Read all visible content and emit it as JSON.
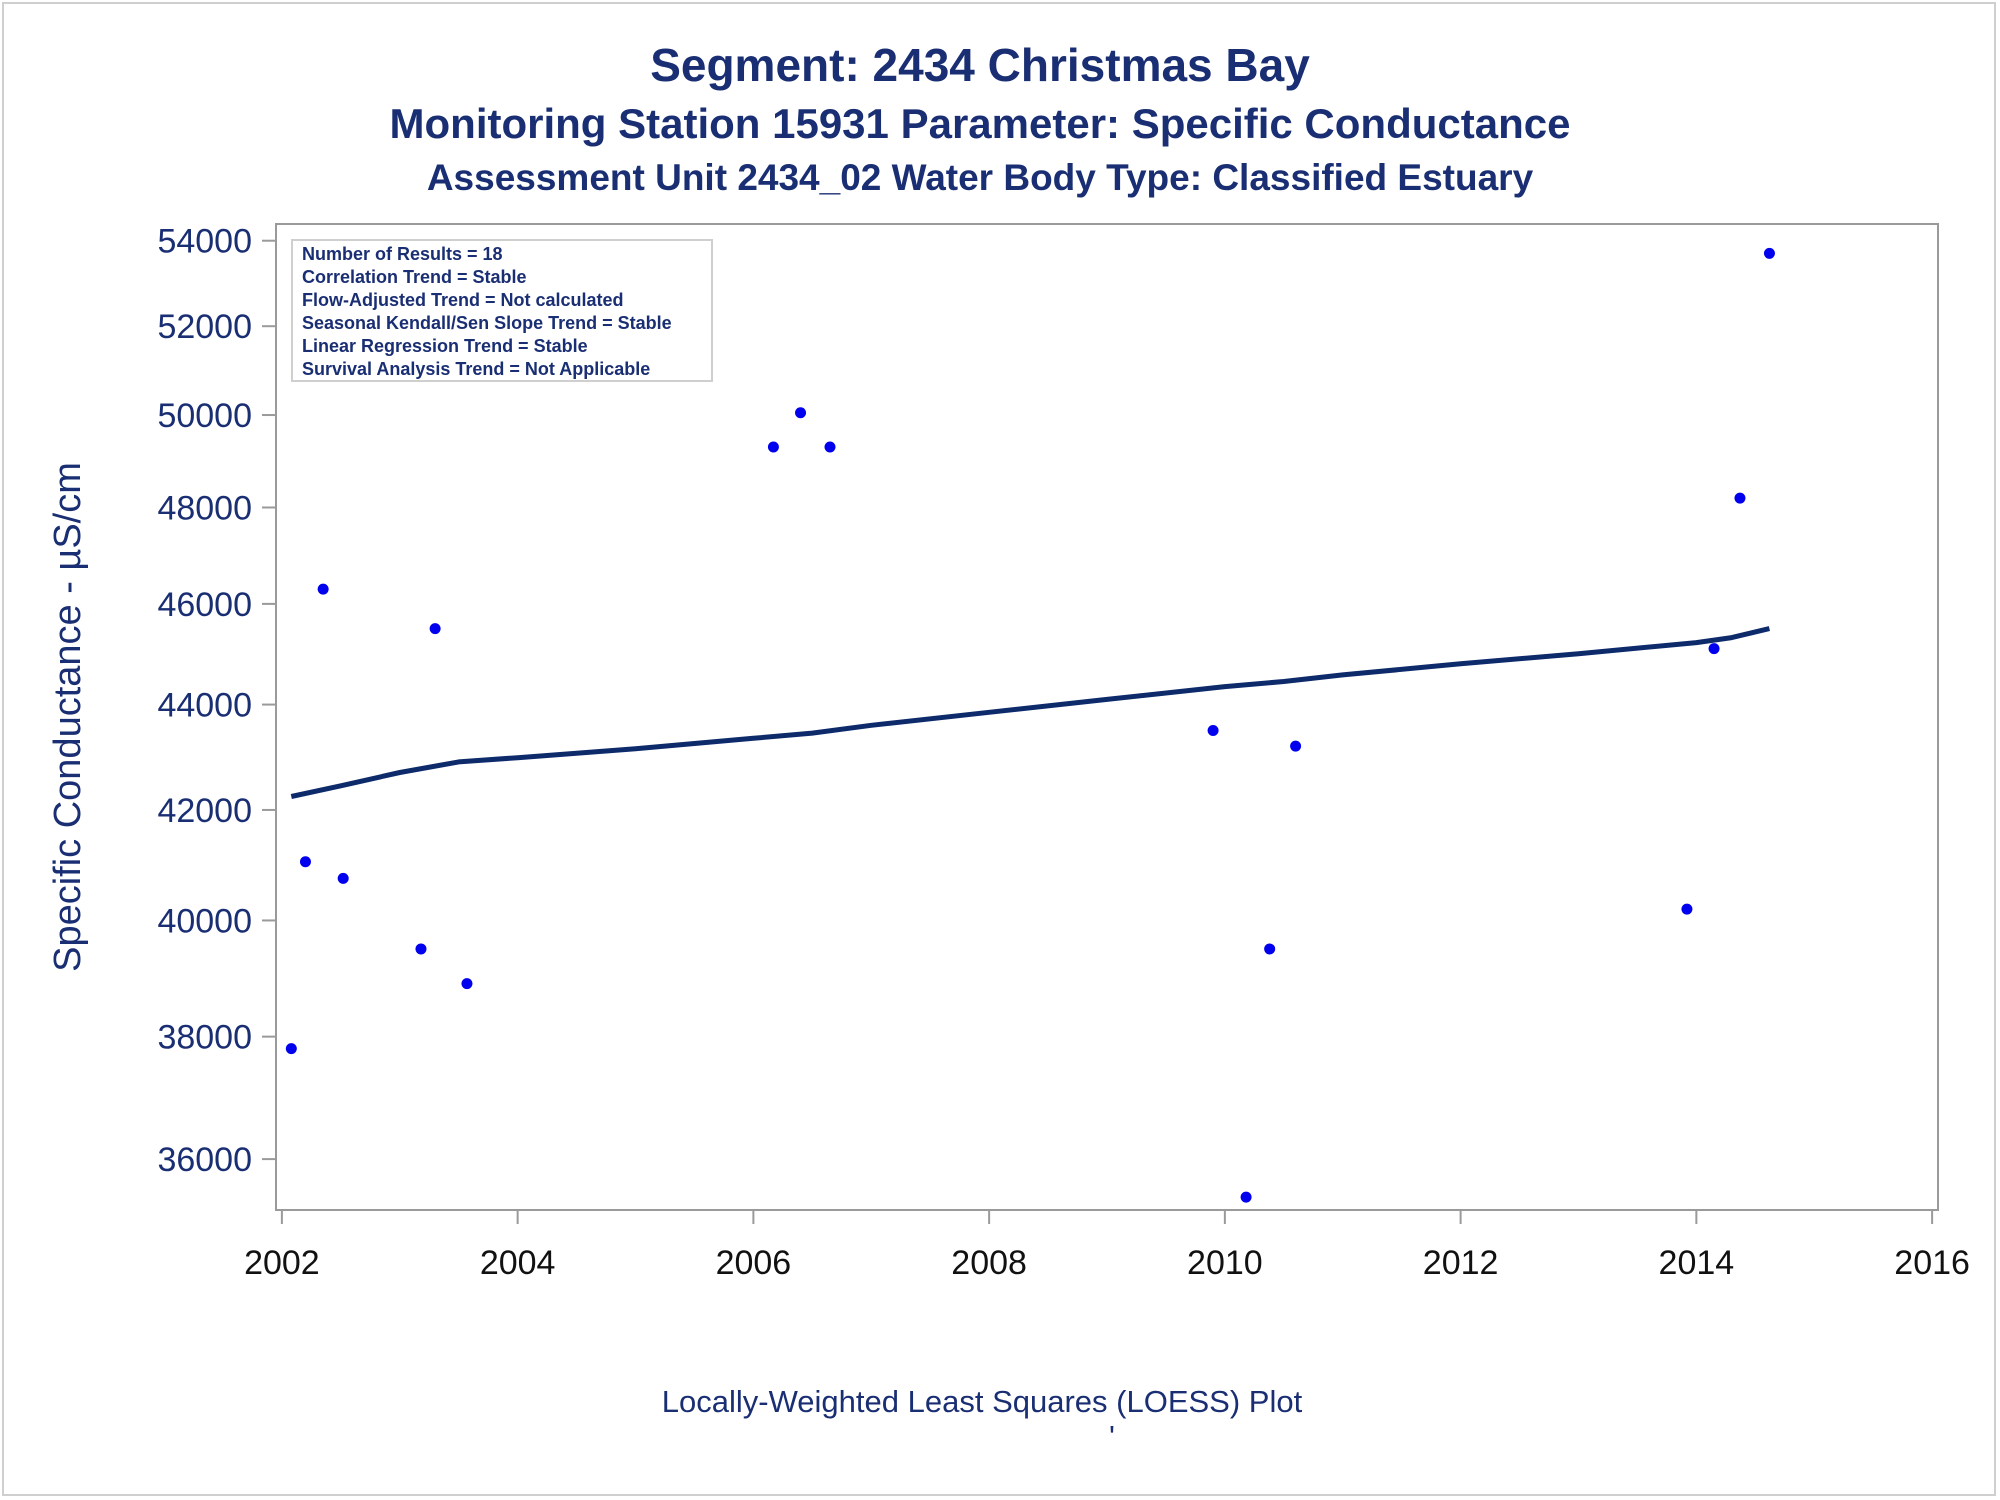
{
  "titles": {
    "line1": "Segment: 2434  Christmas Bay",
    "line2": "Monitoring Station 15931 Parameter: Specific Conductance",
    "line3": "Assessment Unit 2434_02   Water Body Type: Classified Estuary"
  },
  "stats_box": [
    "Number of Results = 18",
    "Correlation Trend = Stable",
    "Flow-Adjusted Trend = Not calculated",
    "Seasonal Kendall/Sen Slope Trend = Stable",
    "Linear Regression Trend = Stable",
    "Survival Analysis Trend = Not Applicable"
  ],
  "footnote": "Locally-Weighted Least Squares (LOESS) Plot",
  "footnote_mark": "'",
  "colors": {
    "text": "#1a2e73",
    "points": "#0000ee",
    "loess_line": "#0d2a6b",
    "axis": "#9a9a9a"
  },
  "chart_data": {
    "type": "scatter",
    "ylabel": "Specific Conductance -  µS/cm",
    "xlabel": "",
    "y_scale": "log",
    "xlim": [
      2001.95,
      2016.05
    ],
    "ylim": [
      35200,
      54400
    ],
    "x_ticks": [
      2002,
      2004,
      2006,
      2008,
      2010,
      2012,
      2014,
      2016
    ],
    "y_ticks": [
      36000,
      38000,
      40000,
      42000,
      44000,
      46000,
      48000,
      50000,
      52000,
      54000
    ],
    "grid": false,
    "legend": "top-left",
    "points": [
      {
        "x": 2002.08,
        "y": 37800
      },
      {
        "x": 2002.2,
        "y": 41050
      },
      {
        "x": 2002.35,
        "y": 46300
      },
      {
        "x": 2002.52,
        "y": 40750
      },
      {
        "x": 2003.18,
        "y": 39500
      },
      {
        "x": 2003.3,
        "y": 45500
      },
      {
        "x": 2003.57,
        "y": 38900
      },
      {
        "x": 2006.17,
        "y": 49300
      },
      {
        "x": 2006.4,
        "y": 50050
      },
      {
        "x": 2006.65,
        "y": 49300
      },
      {
        "x": 2009.9,
        "y": 43500
      },
      {
        "x": 2010.18,
        "y": 35400
      },
      {
        "x": 2010.38,
        "y": 39500
      },
      {
        "x": 2010.6,
        "y": 43200
      },
      {
        "x": 2013.92,
        "y": 40200
      },
      {
        "x": 2014.15,
        "y": 45100
      },
      {
        "x": 2014.37,
        "y": 48200
      },
      {
        "x": 2014.62,
        "y": 53700
      }
    ],
    "loess": {
      "name": "LOESS",
      "x": [
        2002.08,
        2002.5,
        2003,
        2003.5,
        2004,
        2005,
        2006,
        2006.5,
        2007,
        2008,
        2009,
        2010,
        2010.5,
        2011,
        2012,
        2013,
        2014,
        2014.3,
        2014.62
      ],
      "y": [
        42250,
        42450,
        42700,
        42900,
        42980,
        43150,
        43350,
        43450,
        43600,
        43850,
        44100,
        44350,
        44450,
        44580,
        44800,
        45000,
        45220,
        45320,
        45500
      ]
    }
  }
}
